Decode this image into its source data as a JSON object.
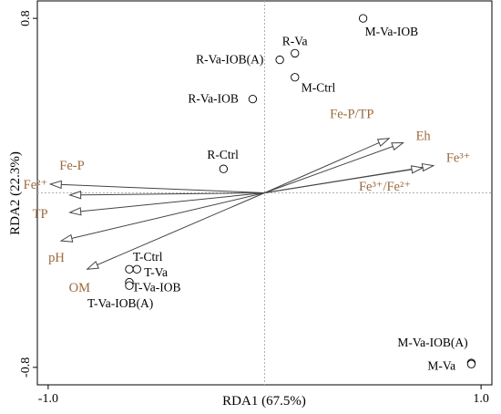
{
  "chart_data": {
    "type": "scatter",
    "subtype": "rda-biplot",
    "xlabel": "RDA1 (67.5%)",
    "ylabel": "RDA2 (22.3%)",
    "xlim": [
      -1.05,
      1.05
    ],
    "ylim": [
      -0.88,
      0.88
    ],
    "x_ticks": [
      {
        "value": -1.0,
        "label": "-1.0"
      },
      {
        "value": 1.0,
        "label": "1.0"
      }
    ],
    "y_ticks": [
      {
        "value": 0.8,
        "label": "0.8"
      },
      {
        "value": -0.8,
        "label": "-0.8"
      }
    ],
    "zero_lines": "dashed",
    "colors": {
      "vectors": "#444444",
      "variable_labels": "#9b6a3c",
      "sites": "#000000",
      "axes": "#000000"
    },
    "sites": [
      {
        "label": "M-Va-IOB",
        "x": 0.455,
        "y": 0.8
      },
      {
        "label": "R-Va",
        "x": 0.14,
        "y": 0.64
      },
      {
        "label": "R-Va-IOB(A)",
        "x": 0.07,
        "y": 0.61
      },
      {
        "label": "M-Ctrl",
        "x": 0.14,
        "y": 0.53
      },
      {
        "label": "R-Va-IOB",
        "x": -0.055,
        "y": 0.43
      },
      {
        "label": "R-Ctrl",
        "x": -0.19,
        "y": 0.11
      },
      {
        "label": "T-Ctrl",
        "x": -0.625,
        "y": -0.35
      },
      {
        "label": "T-Va",
        "x": -0.59,
        "y": -0.35
      },
      {
        "label": "T-Va-IOB",
        "x": -0.625,
        "y": -0.41
      },
      {
        "label": "T-Va-IOB(A)",
        "x": -0.625,
        "y": -0.425
      },
      {
        "label": "M-Va-IOB(A)",
        "x": 0.955,
        "y": -0.78
      },
      {
        "label": "M-Va",
        "x": 0.955,
        "y": -0.785
      }
    ],
    "vectors": [
      {
        "label": "Fe-P/TP",
        "x": 0.575,
        "y": 0.25
      },
      {
        "label": "Eh",
        "x": 0.64,
        "y": 0.23
      },
      {
        "label": "Fe³⁺",
        "x": 0.78,
        "y": 0.125
      },
      {
        "label": "Fe³⁺/Fe²⁺",
        "x": 0.73,
        "y": 0.115
      },
      {
        "label": "Fe-P",
        "x": -0.99,
        "y": 0.04
      },
      {
        "label": "Fe²⁺",
        "x": -0.9,
        "y": -0.01
      },
      {
        "label": "TP",
        "x": -0.9,
        "y": -0.09
      },
      {
        "label": "pH",
        "x": -0.94,
        "y": -0.22
      },
      {
        "label": "OM",
        "x": -0.82,
        "y": -0.35
      }
    ]
  }
}
